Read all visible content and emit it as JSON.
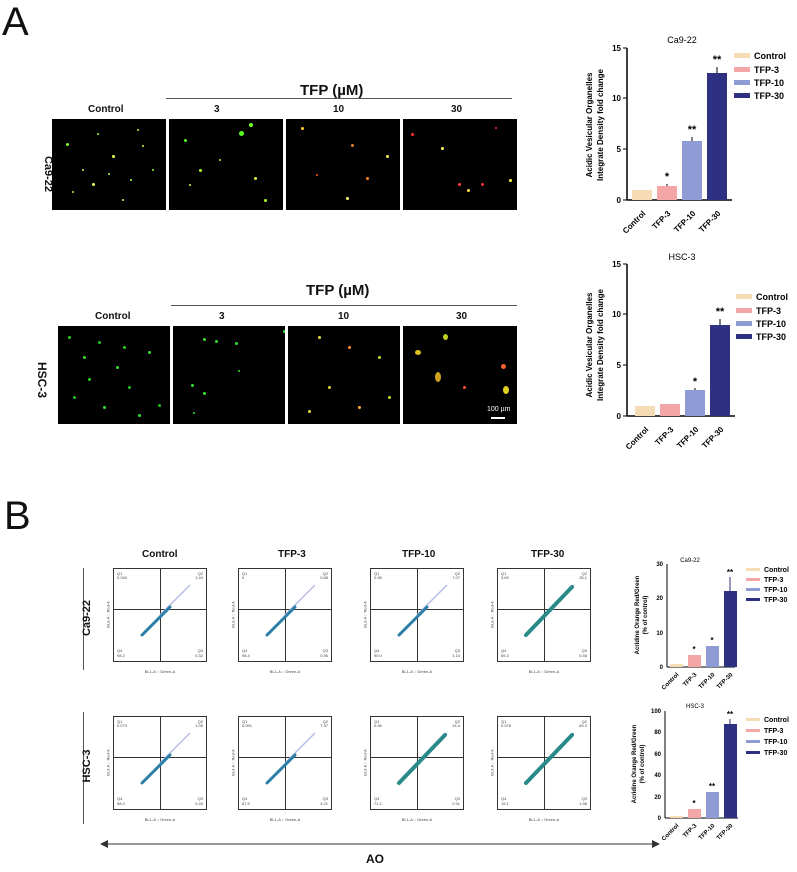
{
  "panel_A": {
    "letter": "A",
    "rows": [
      {
        "cell_line": "Ca9-22",
        "treatment_header": "TFP (µM)",
        "columns": [
          "Control",
          "3",
          "10",
          "30"
        ]
      },
      {
        "cell_line": "HSC-3",
        "treatment_header": "TFP (µM)",
        "columns": [
          "Control",
          "3",
          "10",
          "30"
        ],
        "scale_bar": "100 µm"
      }
    ]
  },
  "panel_B": {
    "letter": "B",
    "column_headers": [
      "Control",
      "TFP-3",
      "TFP-10",
      "TFP-30"
    ],
    "row_labels": [
      "Ca9-22",
      "HSC-3"
    ],
    "x_axis_arrow_label": "AO",
    "flow_axis_x": "BL1-A :: Green-A",
    "flow_axis_y": "BL3-A :: Red-A",
    "flow_plots": [
      [
        {
          "Q1": "0.040",
          "Q2": "1.44",
          "Q3": "0.32",
          "Q4": "98.2"
        },
        {
          "Q1": "0",
          "Q2": "0.68",
          "Q3": "0.96",
          "Q4": "98.4"
        },
        {
          "Q1": "0.96",
          "Q2": "7.07",
          "Q3": "1.14",
          "Q4": "90.0"
        },
        {
          "Q1": "3.69",
          "Q2": "25.1",
          "Q3": "0.48",
          "Q4": "55.3"
        }
      ],
      [
        {
          "Q1": "0.073",
          "Q2": "1.05",
          "Q3": "0.49",
          "Q4": "98.4"
        },
        {
          "Q1": "0.091",
          "Q2": "7.97",
          "Q3": "4.21",
          "Q4": "87.5"
        },
        {
          "Q1": "0.96",
          "Q2": "24.4",
          "Q3": "2.91",
          "Q4": "71.2"
        },
        {
          "Q1": "0.076",
          "Q2": "83.3",
          "Q3": "1.96",
          "Q4": "15.1"
        }
      ]
    ]
  },
  "legend": {
    "items": [
      {
        "label": "Control",
        "color": "#f6dcb4"
      },
      {
        "label": "TFP-3",
        "color": "#f4a6a6"
      },
      {
        "label": "TFP-10",
        "color": "#8e9bd4"
      },
      {
        "label": "TFP-30",
        "color": "#2e3182"
      }
    ]
  },
  "chart_data": [
    {
      "type": "bar",
      "title": "Ca9-22",
      "categories": [
        "Control",
        "TFP-3",
        "TFP-10",
        "TFP-30"
      ],
      "values": [
        1.0,
        1.4,
        5.8,
        12.5
      ],
      "errors": [
        0.0,
        0.15,
        0.3,
        0.6
      ],
      "significance": [
        "",
        "*",
        "**",
        "**"
      ],
      "xlabel": "",
      "ylabel": "Acidic Vesicular Organelles Integrate Density fold change",
      "ylim": [
        0,
        15
      ],
      "yticks": [
        0,
        5,
        10,
        15
      ],
      "legend_position": "right"
    },
    {
      "type": "bar",
      "title": "HSC-3",
      "categories": [
        "Control",
        "TFP-3",
        "TFP-10",
        "TFP-30"
      ],
      "values": [
        1.0,
        1.15,
        2.6,
        9.0
      ],
      "errors": [
        0.0,
        0.05,
        0.15,
        0.6
      ],
      "significance": [
        "",
        "",
        "*",
        "**"
      ],
      "xlabel": "",
      "ylabel": "Acidic Vesicular Organelles Integrate Density fold change",
      "ylim": [
        0,
        15
      ],
      "yticks": [
        0,
        5,
        10,
        15
      ],
      "legend_position": "right"
    },
    {
      "type": "bar",
      "title": "Ca9-22",
      "categories": [
        "Control",
        "TFP-3",
        "TFP-10",
        "TFP-30"
      ],
      "values": [
        0.8,
        3.6,
        6.1,
        22.0
      ],
      "errors": [
        0.4,
        0.4,
        1.0,
        4.0
      ],
      "significance": [
        "",
        "*",
        "*",
        "**"
      ],
      "xlabel": "",
      "ylabel": "Acridine Orange Red/Green (% of control)",
      "ylim": [
        0,
        30
      ],
      "yticks": [
        0,
        10,
        20,
        30
      ],
      "legend_position": "right"
    },
    {
      "type": "bar",
      "title": "HSC-3",
      "categories": [
        "Control",
        "TFP-3",
        "TFP-10",
        "TFP-30"
      ],
      "values": [
        1.5,
        8.5,
        24.0,
        87.5
      ],
      "errors": [
        1.0,
        2.0,
        0.8,
        4.5
      ],
      "significance": [
        "",
        "*",
        "**",
        "**"
      ],
      "xlabel": "",
      "ylabel": "Acridine Orange Red/Green (% of control)",
      "ylim": [
        0,
        100
      ],
      "yticks": [
        0,
        20,
        40,
        60,
        80,
        100
      ],
      "legend_position": "right"
    }
  ]
}
